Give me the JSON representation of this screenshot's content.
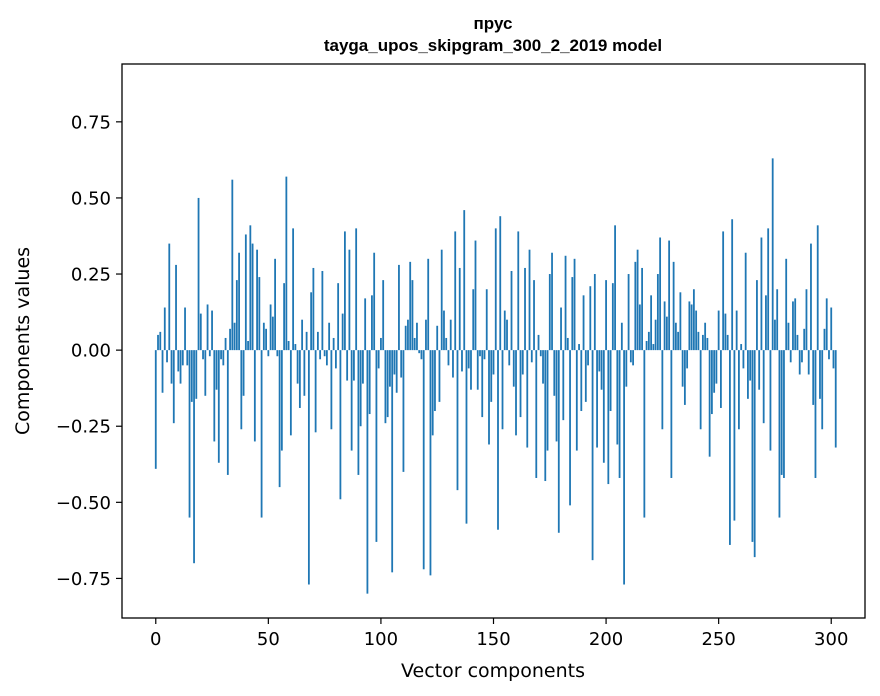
{
  "chart_data": {
    "type": "bar",
    "title_lines": [
      "прус",
      "tayga_upos_skipgram_300_2_2019 model"
    ],
    "xlabel": "Vector components",
    "ylabel": "Components values",
    "xlim": [
      -15,
      315
    ],
    "ylim": [
      -0.88,
      0.94
    ],
    "x_ticks": [
      0,
      50,
      100,
      150,
      200,
      250,
      300
    ],
    "y_ticks": [
      -0.75,
      -0.5,
      -0.25,
      0.0,
      0.25,
      0.5,
      0.75
    ],
    "y_tick_labels": [
      "−0.75",
      "−0.50",
      "−0.25",
      "0.00",
      "0.25",
      "0.50",
      "0.75"
    ],
    "grid": false,
    "bar_color": "#1f77b4",
    "values": [
      -0.39,
      0.05,
      0.06,
      -0.14,
      0.14,
      -0.04,
      0.35,
      -0.11,
      -0.24,
      0.28,
      -0.07,
      -0.11,
      -0.05,
      0.14,
      -0.05,
      -0.55,
      -0.17,
      -0.7,
      -0.16,
      0.5,
      0.12,
      -0.03,
      -0.15,
      0.15,
      -0.02,
      0.13,
      -0.3,
      -0.13,
      -0.37,
      -0.03,
      -0.05,
      0.04,
      -0.41,
      0.07,
      0.56,
      0.09,
      0.23,
      0.32,
      -0.26,
      -0.15,
      0.38,
      0.03,
      0.41,
      0.35,
      -0.3,
      0.33,
      0.24,
      -0.55,
      0.09,
      0.07,
      -0.02,
      0.15,
      0.11,
      0.3,
      -0.02,
      -0.45,
      -0.33,
      0.22,
      0.57,
      0.03,
      -0.28,
      0.4,
      0.02,
      -0.11,
      -0.19,
      0.1,
      -0.15,
      0.06,
      -0.77,
      0.19,
      0.27,
      -0.27,
      0.06,
      -0.03,
      0.26,
      -0.02,
      -0.05,
      0.09,
      -0.26,
      0.04,
      -0.06,
      0.22,
      -0.49,
      0.12,
      0.39,
      -0.1,
      0.33,
      -0.33,
      -0.1,
      0.4,
      -0.41,
      -0.25,
      -0.11,
      0.17,
      -0.8,
      -0.21,
      0.18,
      0.32,
      -0.63,
      -0.06,
      0.04,
      0.23,
      -0.24,
      -0.22,
      -0.12,
      -0.73,
      -0.08,
      -0.14,
      0.28,
      -0.09,
      -0.4,
      0.08,
      0.1,
      0.29,
      0.23,
      0.04,
      0.09,
      -0.01,
      -0.03,
      -0.72,
      0.1,
      0.3,
      -0.74,
      -0.28,
      -0.2,
      0.08,
      -0.17,
      0.33,
      0.13,
      0.04,
      -0.05,
      0.1,
      -0.09,
      0.39,
      -0.46,
      0.27,
      -0.07,
      0.46,
      -0.57,
      -0.06,
      -0.13,
      0.2,
      0.36,
      -0.13,
      -0.02,
      -0.22,
      -0.03,
      0.2,
      -0.31,
      -0.17,
      -0.08,
      0.4,
      -0.59,
      0.44,
      -0.26,
      0.13,
      0.1,
      -0.05,
      0.26,
      -0.12,
      -0.28,
      0.39,
      -0.22,
      -0.08,
      0.27,
      -0.32,
      0.33,
      -0.04,
      0.23,
      -0.42,
      0.05,
      -0.02,
      -0.11,
      -0.43,
      -0.33,
      0.25,
      0.32,
      -0.15,
      -0.3,
      -0.6,
      0.14,
      -0.23,
      0.31,
      0.04,
      -0.51,
      0.24,
      0.3,
      -0.33,
      0.02,
      -0.2,
      0.18,
      -0.17,
      -0.05,
      0.21,
      -0.69,
      0.25,
      -0.32,
      -0.07,
      -0.13,
      -0.37,
      0.23,
      -0.44,
      -0.2,
      0.22,
      0.41,
      -0.31,
      -0.42,
      0.09,
      -0.77,
      -0.12,
      0.25,
      -0.04,
      -0.05,
      0.29,
      0.33,
      0.15,
      0.27,
      -0.55,
      0.03,
      0.06,
      0.18,
      0.02,
      0.1,
      0.25,
      0.37,
      -0.26,
      0.16,
      0.11,
      0.36,
      -0.42,
      0.29,
      0.09,
      0.06,
      0.19,
      -0.12,
      -0.18,
      -0.06,
      0.16,
      0.15,
      0.2,
      0.13,
      0.06,
      -0.26,
      0.05,
      0.09,
      0.04,
      -0.35,
      -0.21,
      -0.14,
      -0.11,
      0.13,
      -0.19,
      0.39,
      0.12,
      0.05,
      -0.64,
      0.43,
      -0.56,
      0.13,
      -0.26,
      0.02,
      -0.06,
      0.32,
      -0.16,
      -0.1,
      -0.63,
      -0.68,
      0.23,
      -0.13,
      0.37,
      -0.24,
      0.18,
      0.4,
      -0.33,
      0.63,
      0.1,
      0.2,
      -0.55,
      -0.41,
      -0.42,
      0.3,
      0.09,
      -0.04,
      0.16,
      0.17,
      0.05,
      -0.08,
      -0.04,
      0.07,
      0.2,
      -0.08,
      0.35,
      -0.18,
      -0.42,
      0.41,
      -0.16,
      -0.26,
      0.07,
      0.17,
      -0.03,
      0.14,
      -0.06,
      -0.32
    ]
  }
}
